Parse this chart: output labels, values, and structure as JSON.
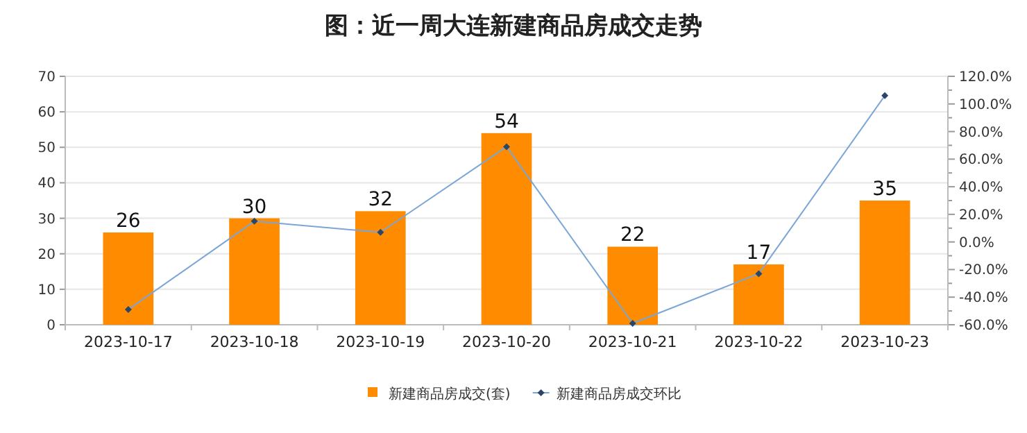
{
  "chart_data": {
    "type": "bar",
    "title": "图：近一周大连新建商品房成交走势",
    "categories": [
      "2023-10-17",
      "2023-10-18",
      "2023-10-19",
      "2023-10-20",
      "2023-10-21",
      "2023-10-22",
      "2023-10-23"
    ],
    "series": [
      {
        "name": "新建商品房成交(套)",
        "color": "#ff8c00",
        "values": [
          26,
          30,
          32,
          54,
          22,
          17,
          35
        ],
        "value_labels": [
          "26",
          "30",
          "32",
          "54",
          "22",
          "17",
          "35"
        ]
      },
      {
        "name": "新建商品房成交环比",
        "type": "line",
        "axis": "y2",
        "color": "#7aa6d6",
        "marker": "diamond",
        "values": [
          -49,
          15,
          7,
          69,
          -59,
          -23,
          106
        ]
      }
    ],
    "ylim": [
      0,
      70
    ],
    "yticks": [
      0,
      10,
      20,
      30,
      40,
      50,
      60,
      70
    ],
    "y2lim": [
      -60,
      120
    ],
    "y2ticks": [
      {
        "value": -60,
        "label": "-60.0%"
      },
      {
        "value": -50,
        "label": null
      },
      {
        "value": -40,
        "label": "-40.0%"
      },
      {
        "value": -30,
        "label": null
      },
      {
        "value": -20,
        "label": "-20.0%"
      },
      {
        "value": -10,
        "label": null
      },
      {
        "value": 0,
        "label": "0.0%"
      },
      {
        "value": 10,
        "label": null
      },
      {
        "value": 20,
        "label": "20.0%"
      },
      {
        "value": 30,
        "label": null
      },
      {
        "value": 40,
        "label": "40.0%"
      },
      {
        "value": 50,
        "label": null
      },
      {
        "value": 60,
        "label": "60.0%"
      },
      {
        "value": 70,
        "label": null
      },
      {
        "value": 80,
        "label": "80.0%"
      },
      {
        "value": 90,
        "label": null
      },
      {
        "value": 100,
        "label": "100.0%"
      },
      {
        "value": 110,
        "label": null
      },
      {
        "value": 120,
        "label": "120.0%"
      }
    ],
    "grid": "y",
    "legend": "bottom"
  }
}
